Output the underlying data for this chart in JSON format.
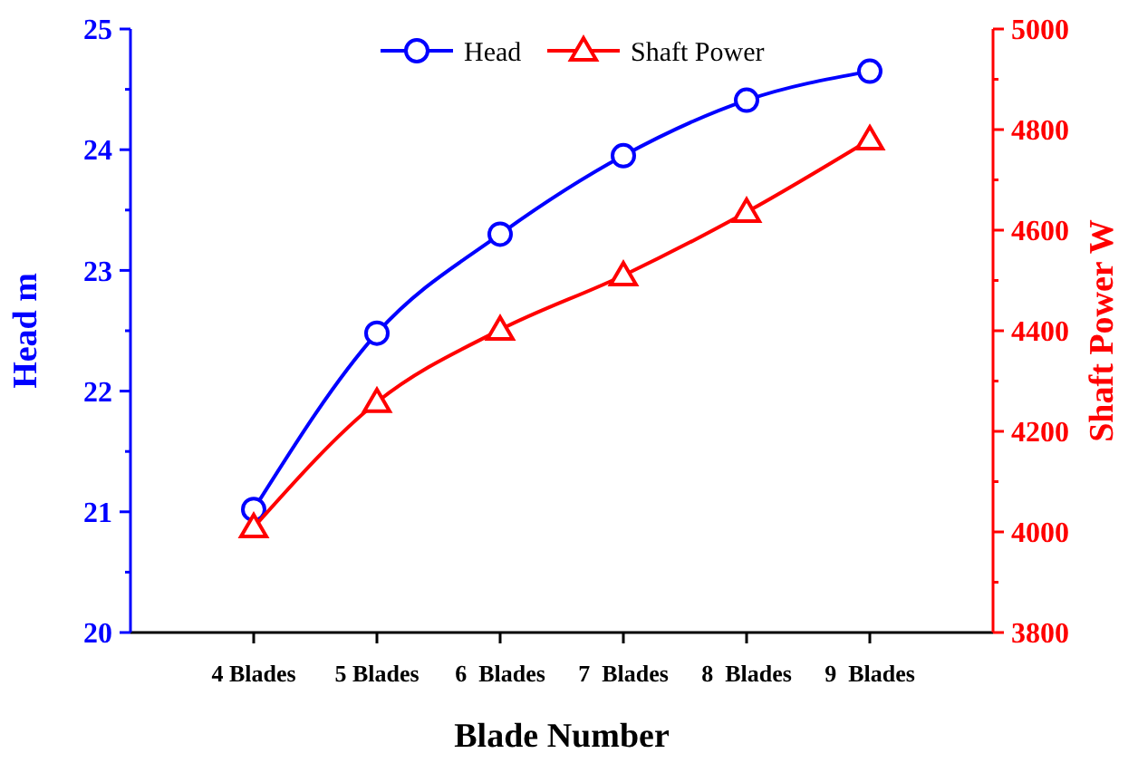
{
  "chart_data": {
    "type": "line",
    "xlabel": "Blade Number",
    "ylabel": "Head m",
    "y2label": "Shaft Power W",
    "categories": [
      "4 Blades",
      "5 Blades",
      "6  Blades",
      "7  Blades",
      "8  Blades",
      "9  Blades"
    ],
    "series": [
      {
        "name": "Head",
        "color": "#0000ff",
        "marker": "circle",
        "values": [
          21.02,
          22.48,
          23.3,
          23.95,
          24.41,
          24.65
        ]
      },
      {
        "name": "Shaft Power",
        "color": "#ff0000",
        "marker": "triangle",
        "axis": "y2",
        "values": [
          4009,
          4258,
          4402,
          4510,
          4636,
          4780
        ]
      }
    ],
    "ylim": [
      20,
      25
    ],
    "yticks": [
      20,
      {
        "value": 20.5,
        "label": null
      },
      21,
      {
        "value": 21.5,
        "label": null
      },
      22,
      {
        "value": 22.5,
        "label": null
      },
      23,
      {
        "value": 23.5,
        "label": null
      },
      24,
      {
        "value": 24.5,
        "label": null
      },
      25
    ],
    "y2lim": [
      3800,
      5000
    ],
    "y2ticks": [
      3800,
      {
        "value": 3900,
        "label": null
      },
      4000,
      {
        "value": 4100,
        "label": null
      },
      4200,
      {
        "value": 4300,
        "label": null
      },
      4400,
      {
        "value": 4500,
        "label": null
      },
      4600,
      {
        "value": 4700,
        "label": null
      },
      4800,
      {
        "value": 4900,
        "label": null
      },
      5000
    ],
    "legend": "top",
    "grid": false
  }
}
